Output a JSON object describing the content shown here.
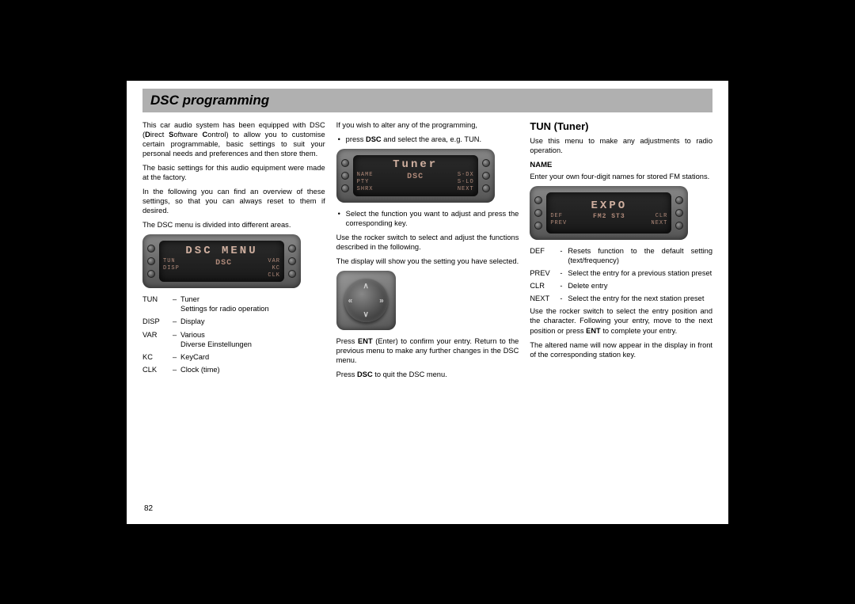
{
  "page": {
    "title": "DSC programming",
    "number": "82"
  },
  "col1": {
    "p1a": "This car audio system has been equipped with DSC (",
    "p1b": "D",
    "p1c": "irect ",
    "p1d": "S",
    "p1e": "oftware ",
    "p1f": "C",
    "p1g": "ontrol) to allow you to customise certain programmable, basic settings to suit your personal needs and preferences and then store them.",
    "p2": "The basic settings for this audio equipment were made at the factory.",
    "p3": "In the following you can find an overview of these settings, so that you can always reset to them if desired.",
    "p4": "The DSC menu is divided into different areas.",
    "abbr": [
      {
        "key": "TUN",
        "dash": "–",
        "d1": "Tuner",
        "d2": "Settings for radio operation"
      },
      {
        "key": "DISP",
        "dash": "–",
        "d1": "Display",
        "d2": ""
      },
      {
        "key": "VAR",
        "dash": "–",
        "d1": "Various",
        "d2": "Diverse Einstellungen"
      },
      {
        "key": "KC",
        "dash": "–",
        "d1": "KeyCard",
        "d2": ""
      },
      {
        "key": "CLK",
        "dash": "–",
        "d1": "Clock (time)",
        "d2": ""
      }
    ],
    "radio": {
      "big": "DSC MENU",
      "left": [
        "TUN",
        "",
        "DISP"
      ],
      "right": [
        "VAR",
        "KC",
        "CLK"
      ],
      "center_bottom": "DSC"
    }
  },
  "col2": {
    "p1": "If you wish to alter any of the programming,",
    "b1a": "press ",
    "b1b": "DSC",
    "b1c": " and select the area, e.g. TUN.",
    "b2": "Select the function you want to adjust and press the corresponding key.",
    "p2": "Use the rocker switch to select and adjust the functions described in the following.",
    "p3": "The display will show you the setting you have selected.",
    "p4a": "Press ",
    "p4b": "ENT",
    "p4c": " (Enter) to confirm your entry. Return to the previous menu to make any further changes in the DSC menu.",
    "p5a": "Press ",
    "p5b": "DSC",
    "p5c": " to quit the DSC menu.",
    "radio": {
      "big": "Tuner",
      "left": [
        "NAME",
        "PTY",
        "SHRX"
      ],
      "right": [
        "S-DX",
        "S-LO",
        "NEXT"
      ],
      "center_bottom": "DSC"
    }
  },
  "col3": {
    "heading": "TUN (Tuner)",
    "p1": "Use this menu to make any adjustments to radio operation.",
    "name_head": "NAME",
    "name_p": "Enter your own four-digit names for stored FM stations.",
    "defs": [
      {
        "key": "DEF",
        "dash": "-",
        "d": "Resets function to the default setting (text/frequency)"
      },
      {
        "key": "PREV",
        "dash": "-",
        "d": "Select the entry for a previous station preset"
      },
      {
        "key": "CLR",
        "dash": "-",
        "d": "Delete entry"
      },
      {
        "key": "NEXT",
        "dash": "-",
        "d": "Select the entry for the next station preset"
      }
    ],
    "p4a": "Use the rocker switch to select the entry position and the character. Following your entry, move to the next position or press ",
    "p4b": "ENT",
    "p4c": " to complete your entry.",
    "p5": "The altered name will now appear in the display in front of the corresponding station key.",
    "radio": {
      "big": "EXPO",
      "left": [
        "DEF",
        "",
        "PREV"
      ],
      "right": [
        "CLR",
        "",
        "NEXT"
      ],
      "center_bottom": "FM2 ST3"
    }
  },
  "colors": {
    "title_bar_bg": "#b0b0b0",
    "page_bg": "#ffffff",
    "outer_bg": "#000000",
    "lcd_text": "#d0b0a0"
  }
}
